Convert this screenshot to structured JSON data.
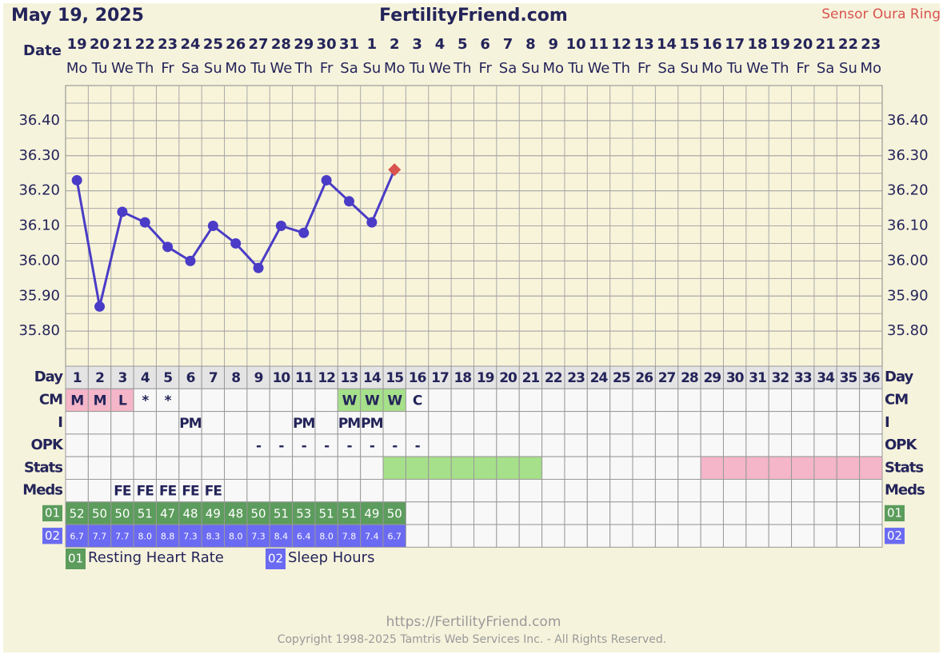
{
  "header": {
    "date": "May 19, 2025",
    "site": "FertilityFriend.com",
    "sensor": "Sensor Oura Ring"
  },
  "chart_data": {
    "type": "line",
    "x_label": "Date",
    "categories": [
      "19",
      "20",
      "21",
      "22",
      "23",
      "24",
      "25",
      "26",
      "27",
      "28",
      "29",
      "30",
      "31",
      "1",
      "2",
      "3",
      "4",
      "5",
      "6",
      "7",
      "8",
      "9",
      "10",
      "11",
      "12",
      "13",
      "14",
      "15",
      "16",
      "17",
      "18",
      "19",
      "20",
      "21",
      "22",
      "23"
    ],
    "weekdays": [
      "Mo",
      "Tu",
      "We",
      "Th",
      "Fr",
      "Sa",
      "Su",
      "Mo",
      "Tu",
      "We",
      "Th",
      "Fr",
      "Sa",
      "Su",
      "Mo",
      "Tu",
      "We",
      "Th",
      "Fr",
      "Sa",
      "Su",
      "Mo",
      "Tu",
      "We",
      "Th",
      "Fr",
      "Sa",
      "Su",
      "Mo",
      "Tu",
      "We",
      "Th",
      "Fr",
      "Sa",
      "Su",
      "Mo"
    ],
    "series": [
      {
        "color": "#4a3cc6",
        "values": [
          36.23,
          35.87,
          36.14,
          36.11,
          36.04,
          36.0,
          36.1,
          36.05,
          35.98,
          36.1,
          36.08,
          36.23,
          36.17,
          36.11,
          36.26,
          null,
          null,
          null,
          null,
          null,
          null,
          null,
          null,
          null,
          null,
          null,
          null,
          null,
          null,
          null,
          null,
          null,
          null,
          null,
          null,
          null
        ]
      }
    ],
    "sensor_marker": {
      "index": 14,
      "shape": "diamond",
      "color": "#d9534f"
    },
    "ylim": [
      35.7,
      36.5
    ],
    "yticks": [
      {
        "value": 35.8,
        "label": "35.80"
      },
      {
        "value": 35.9,
        "label": "35.90"
      },
      {
        "value": 36.0,
        "label": "36.00"
      },
      {
        "value": 36.1,
        "label": "36.10"
      },
      {
        "value": 36.2,
        "label": "36.20"
      },
      {
        "value": 36.3,
        "label": "36.30"
      },
      {
        "value": 36.4,
        "label": "36.40"
      }
    ],
    "grid": true
  },
  "rows": [
    {
      "label": "Day",
      "cells": [
        "1",
        "2",
        "3",
        "4",
        "5",
        "6",
        "7",
        "8",
        "9",
        "10",
        "11",
        "12",
        "13",
        "14",
        "15",
        "16",
        "17",
        "18",
        "19",
        "20",
        "21",
        "22",
        "23",
        "24",
        "25",
        "26",
        "27",
        "28",
        "29",
        "30",
        "31",
        "32",
        "33",
        "34",
        "35",
        "36"
      ]
    },
    {
      "label": "CM",
      "cells": [
        "M",
        "M",
        "L",
        "*",
        "*",
        null,
        null,
        null,
        null,
        null,
        null,
        null,
        "W",
        "W",
        "W",
        "C",
        null,
        null,
        null,
        null,
        null,
        null,
        null,
        null,
        null,
        null,
        null,
        null,
        null,
        null,
        null,
        null,
        null,
        null,
        null,
        null
      ],
      "colors": [
        "#f4b6c8",
        "#f4b6c8",
        "#f4b6c8",
        null,
        null,
        null,
        null,
        null,
        null,
        null,
        null,
        null,
        "#a6e08a",
        "#a6e08a",
        "#a6e08a",
        null,
        null,
        null,
        null,
        null,
        null,
        null,
        null,
        null,
        null,
        null,
        null,
        null,
        null,
        null,
        null,
        null,
        null,
        null,
        null,
        null
      ]
    },
    {
      "label": "I",
      "cells": [
        null,
        null,
        null,
        null,
        null,
        "PM",
        null,
        null,
        null,
        null,
        "PM",
        null,
        "PM",
        "PM",
        null,
        null,
        null,
        null,
        null,
        null,
        null,
        null,
        null,
        null,
        null,
        null,
        null,
        null,
        null,
        null,
        null,
        null,
        null,
        null,
        null,
        null
      ]
    },
    {
      "label": "OPK",
      "cells": [
        null,
        null,
        null,
        null,
        null,
        null,
        null,
        null,
        "-",
        "-",
        "-",
        "-",
        "-",
        "-",
        "-",
        "-",
        null,
        null,
        null,
        null,
        null,
        null,
        null,
        null,
        null,
        null,
        null,
        null,
        null,
        null,
        null,
        null,
        null,
        null,
        null,
        null
      ]
    },
    {
      "label": "Stats",
      "cells": [],
      "colors": [
        null,
        null,
        null,
        null,
        null,
        null,
        null,
        null,
        null,
        null,
        null,
        null,
        null,
        null,
        "#a6e08a",
        "#a6e08a",
        "#a6e08a",
        "#a6e08a",
        "#a6e08a",
        "#a6e08a",
        "#a6e08a",
        null,
        null,
        null,
        null,
        null,
        null,
        null,
        "#f4b6c8",
        "#f4b6c8",
        "#f4b6c8",
        "#f4b6c8",
        "#f4b6c8",
        "#f4b6c8",
        "#f4b6c8",
        "#f4b6c8"
      ]
    },
    {
      "label": "Meds",
      "cells": [
        null,
        null,
        "FE",
        "FE",
        "FE",
        "FE",
        "FE",
        null,
        null,
        null,
        null,
        null,
        null,
        null,
        null,
        null,
        null,
        null,
        null,
        null,
        null,
        null,
        null,
        null,
        null,
        null,
        null,
        null,
        null,
        null,
        null,
        null,
        null,
        null,
        null,
        null
      ]
    },
    {
      "label": "01",
      "badge_color": "#5c9c5c",
      "cells": [
        "52",
        "50",
        "50",
        "51",
        "47",
        "48",
        "49",
        "48",
        "50",
        "51",
        "53",
        "51",
        "51",
        "49",
        "50"
      ]
    },
    {
      "label": "02",
      "badge_color": "#6a6af2",
      "cells": [
        "6.7",
        "7.7",
        "7.7",
        "8.0",
        "8.8",
        "7.3",
        "8.3",
        "8.0",
        "7.3",
        "8.4",
        "6.4",
        "8.0",
        "7.8",
        "7.4",
        "6.7"
      ]
    }
  ],
  "legend": [
    {
      "badge": "01",
      "label": "Resting Heart Rate",
      "color": "#5c9c5c"
    },
    {
      "badge": "02",
      "label": "Sleep Hours",
      "color": "#6a6af2"
    }
  ],
  "footer": {
    "url": "https://FertilityFriend.com",
    "copyright": "Copyright 1998-2025 Tamtris Web Services Inc. - All Rights Reserved."
  }
}
